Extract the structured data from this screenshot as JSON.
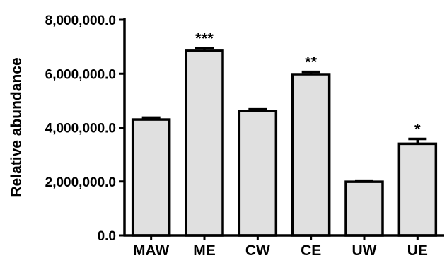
{
  "chart_data": {
    "type": "bar",
    "categories": [
      "MAW",
      "ME",
      "CW",
      "CE",
      "UW",
      "UE"
    ],
    "values": [
      4300000,
      6850000,
      4620000,
      5980000,
      1990000,
      3400000
    ],
    "errors": [
      70000,
      100000,
      60000,
      90000,
      40000,
      180000
    ],
    "significance": [
      "",
      "***",
      "",
      "**",
      "",
      "*"
    ],
    "xlabel": "",
    "ylabel": "Relative abundance",
    "ylim": [
      0,
      8000000
    ],
    "yticks": [
      0,
      2000000,
      4000000,
      6000000,
      8000000
    ],
    "ytick_labels": [
      "0.0",
      "2,000,000.0",
      "4,000,000.0",
      "6,000,000.0",
      "8,000,000.0"
    ],
    "bar_color": "#e0e0e0",
    "edge_color": "#000000",
    "grid": false,
    "legend": "none"
  }
}
